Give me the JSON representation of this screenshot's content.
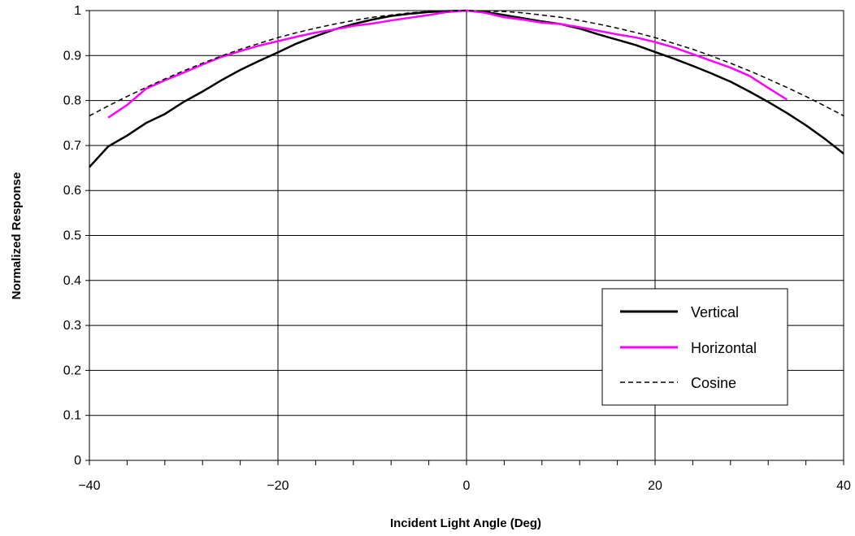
{
  "chart_data": {
    "type": "line",
    "title": "",
    "xlabel": "Incident Light Angle (Deg)",
    "ylabel": "Normalized Response",
    "xlim": [
      -40,
      40
    ],
    "ylim": [
      0,
      1
    ],
    "x_ticks": [
      -40,
      -20,
      0,
      20,
      40
    ],
    "x_tick_labels": [
      "−40",
      "−20",
      "0",
      "20",
      "40"
    ],
    "x_minor_step": 4,
    "y_ticks": [
      0,
      0.1,
      0.2,
      0.3,
      0.4,
      0.5,
      0.6,
      0.7,
      0.8,
      0.9,
      1
    ],
    "y_tick_labels": [
      "0",
      "0.1",
      "0.2",
      "0.3",
      "0.4",
      "0.5",
      "0.6",
      "0.7",
      "0.8",
      "0.9",
      "1"
    ],
    "grid": true,
    "legend_position": "lower-right",
    "series": [
      {
        "name": "Vertical",
        "color": "#000000",
        "style": "solid",
        "x": [
          -40,
          -38,
          -36,
          -34,
          -32,
          -30,
          -28,
          -26,
          -24,
          -22,
          -20,
          -18,
          -16,
          -14,
          -12,
          -10,
          -8,
          -6,
          -4,
          -2,
          0,
          2,
          4,
          6,
          8,
          10,
          12,
          14,
          16,
          18,
          20,
          22,
          24,
          26,
          28,
          30,
          32,
          34,
          36,
          38,
          40
        ],
        "y": [
          0.652,
          0.698,
          0.722,
          0.75,
          0.77,
          0.797,
          0.82,
          0.845,
          0.868,
          0.888,
          0.907,
          0.927,
          0.943,
          0.958,
          0.97,
          0.98,
          0.988,
          0.993,
          0.997,
          0.999,
          1.0,
          0.997,
          0.99,
          0.983,
          0.976,
          0.97,
          0.96,
          0.947,
          0.935,
          0.923,
          0.908,
          0.893,
          0.877,
          0.86,
          0.842,
          0.82,
          0.797,
          0.772,
          0.745,
          0.715,
          0.682
        ]
      },
      {
        "name": "Horizontal",
        "color": "#ff00ff",
        "style": "solid",
        "x": [
          -38,
          -36,
          -34,
          -32,
          -30,
          -28,
          -26,
          -24,
          -22,
          -20,
          -18,
          -16,
          -14,
          -12,
          -10,
          -8,
          -6,
          -4,
          -2,
          0,
          2,
          4,
          6,
          8,
          10,
          12,
          14,
          16,
          18,
          20,
          22,
          24,
          26,
          28,
          30,
          32,
          34
        ],
        "y": [
          0.762,
          0.79,
          0.826,
          0.845,
          0.862,
          0.88,
          0.897,
          0.91,
          0.922,
          0.932,
          0.942,
          0.951,
          0.958,
          0.966,
          0.971,
          0.978,
          0.984,
          0.99,
          0.997,
          1.0,
          0.995,
          0.985,
          0.98,
          0.973,
          0.97,
          0.963,
          0.955,
          0.947,
          0.94,
          0.93,
          0.918,
          0.903,
          0.888,
          0.873,
          0.855,
          0.828,
          0.802
        ]
      },
      {
        "name": "Cosine",
        "color": "#000000",
        "style": "dashed",
        "function": "cos(x)",
        "x": [
          -40,
          -38,
          -36,
          -34,
          -32,
          -30,
          -28,
          -26,
          -24,
          -22,
          -20,
          -18,
          -16,
          -14,
          -12,
          -10,
          -8,
          -6,
          -4,
          -2,
          0,
          2,
          4,
          6,
          8,
          10,
          12,
          14,
          16,
          18,
          20,
          22,
          24,
          26,
          28,
          30,
          32,
          34,
          36,
          38,
          40
        ],
        "y": [
          0.766,
          0.788,
          0.809,
          0.829,
          0.848,
          0.866,
          0.883,
          0.899,
          0.914,
          0.927,
          0.94,
          0.951,
          0.961,
          0.97,
          0.978,
          0.985,
          0.99,
          0.995,
          0.998,
          0.999,
          1.0,
          0.999,
          0.998,
          0.995,
          0.99,
          0.985,
          0.978,
          0.97,
          0.961,
          0.951,
          0.94,
          0.927,
          0.914,
          0.899,
          0.883,
          0.866,
          0.848,
          0.829,
          0.809,
          0.788,
          0.766
        ]
      }
    ]
  }
}
